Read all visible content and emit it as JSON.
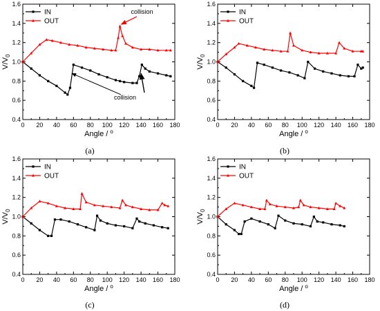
{
  "chart_data": [
    {
      "panel_label": "(a)",
      "type": "line",
      "xlabel": "Angle / o",
      "ylabel": "V/V0",
      "xlim": [
        0,
        180
      ],
      "ylim": [
        0.4,
        1.6
      ],
      "xticks": [
        "0",
        "20",
        "40",
        "60",
        "80",
        "100",
        "120",
        "140",
        "160",
        "180"
      ],
      "yticks": [
        "0.4",
        "0.6",
        "0.8",
        "1.0",
        "1.2",
        "1.4",
        "1.6"
      ],
      "legend_position": "top-left",
      "series": [
        {
          "name": "IN",
          "color": "#000000",
          "marker": "square",
          "x": [
            0,
            10,
            20,
            30,
            40,
            50,
            53,
            56,
            60,
            70,
            80,
            90,
            100,
            110,
            115,
            120,
            130,
            135,
            138,
            141,
            145,
            150,
            160,
            170,
            175
          ],
          "y": [
            1.0,
            0.93,
            0.86,
            0.8,
            0.75,
            0.68,
            0.66,
            0.73,
            0.97,
            0.94,
            0.91,
            0.87,
            0.84,
            0.81,
            0.8,
            0.79,
            0.78,
            0.78,
            0.85,
            0.97,
            0.93,
            0.9,
            0.88,
            0.86,
            0.85
          ]
        },
        {
          "name": "OUT",
          "color": "#ff0000",
          "marker": "triangle",
          "x": [
            0,
            10,
            20,
            28,
            35,
            45,
            55,
            65,
            75,
            85,
            95,
            105,
            110,
            113,
            115,
            118,
            122,
            130,
            140,
            150,
            160,
            170,
            175
          ],
          "y": [
            1.0,
            1.09,
            1.18,
            1.23,
            1.22,
            1.2,
            1.18,
            1.17,
            1.15,
            1.14,
            1.13,
            1.12,
            1.12,
            1.25,
            1.37,
            1.27,
            1.19,
            1.15,
            1.13,
            1.13,
            1.12,
            1.12,
            1.12
          ]
        }
      ],
      "annotations": [
        "collision",
        "collision"
      ]
    },
    {
      "panel_label": "(b)",
      "type": "line",
      "xlabel": "Angle / o",
      "ylabel": "V/V0",
      "xlim": [
        0,
        180
      ],
      "ylim": [
        0.4,
        1.6
      ],
      "xticks": [
        "0",
        "20",
        "40",
        "60",
        "80",
        "100",
        "120",
        "140",
        "160",
        "180"
      ],
      "yticks": [
        "0.4",
        "0.6",
        "0.8",
        "1.0",
        "1.2",
        "1.4",
        "1.6"
      ],
      "legend_position": "top-left",
      "series": [
        {
          "name": "IN",
          "color": "#000000",
          "marker": "square",
          "x": [
            0,
            10,
            20,
            30,
            40,
            43,
            47,
            55,
            65,
            75,
            85,
            95,
            103,
            107,
            115,
            125,
            135,
            145,
            155,
            162,
            166,
            170,
            172
          ],
          "y": [
            1.0,
            0.94,
            0.87,
            0.8,
            0.75,
            0.73,
            0.99,
            0.97,
            0.94,
            0.91,
            0.89,
            0.86,
            0.83,
            1.0,
            0.93,
            0.9,
            0.88,
            0.86,
            0.85,
            0.85,
            0.97,
            0.93,
            0.94
          ]
        },
        {
          "name": "OUT",
          "color": "#ff0000",
          "marker": "triangle",
          "x": [
            0,
            10,
            20,
            25,
            35,
            45,
            55,
            65,
            75,
            83,
            86,
            90,
            100,
            110,
            120,
            130,
            140,
            144,
            150,
            160,
            170,
            172
          ],
          "y": [
            1.0,
            1.08,
            1.15,
            1.19,
            1.17,
            1.15,
            1.13,
            1.12,
            1.11,
            1.11,
            1.3,
            1.17,
            1.12,
            1.1,
            1.09,
            1.09,
            1.09,
            1.2,
            1.14,
            1.11,
            1.11,
            1.11
          ]
        }
      ]
    },
    {
      "panel_label": "(c)",
      "type": "line",
      "xlabel": "Angle / o",
      "ylabel": "V/V0",
      "xlim": [
        0,
        180
      ],
      "ylim": [
        0.4,
        1.6
      ],
      "xticks": [
        "0",
        "20",
        "40",
        "60",
        "80",
        "100",
        "120",
        "140",
        "160",
        "180"
      ],
      "yticks": [
        "0.4",
        "0.6",
        "0.8",
        "1.0",
        "1.2",
        "1.4",
        "1.6"
      ],
      "legend_position": "top-left",
      "series": [
        {
          "name": "IN",
          "color": "#000000",
          "marker": "square",
          "x": [
            0,
            10,
            20,
            30,
            34,
            38,
            45,
            55,
            65,
            75,
            85,
            88,
            92,
            100,
            110,
            120,
            130,
            135,
            138,
            145,
            155,
            165,
            172
          ],
          "y": [
            1.0,
            0.93,
            0.86,
            0.8,
            0.8,
            0.97,
            0.97,
            0.95,
            0.92,
            0.89,
            0.86,
            1.01,
            0.96,
            0.93,
            0.91,
            0.9,
            0.88,
            0.98,
            0.95,
            0.93,
            0.91,
            0.89,
            0.88
          ]
        },
        {
          "name": "OUT",
          "color": "#ff0000",
          "marker": "triangle",
          "x": [
            0,
            10,
            20,
            30,
            40,
            50,
            60,
            68,
            70,
            75,
            85,
            95,
            105,
            115,
            118,
            122,
            130,
            140,
            150,
            160,
            165,
            168,
            172
          ],
          "y": [
            1.0,
            1.09,
            1.16,
            1.14,
            1.11,
            1.09,
            1.08,
            1.08,
            1.24,
            1.15,
            1.12,
            1.11,
            1.1,
            1.09,
            1.17,
            1.12,
            1.1,
            1.08,
            1.07,
            1.07,
            1.14,
            1.12,
            1.11
          ]
        }
      ]
    },
    {
      "panel_label": "(d)",
      "type": "line",
      "xlabel": "Angle / o",
      "ylabel": "V/V0",
      "xlim": [
        0,
        180
      ],
      "ylim": [
        0.4,
        1.6
      ],
      "xticks": [
        "0",
        "20",
        "40",
        "60",
        "80",
        "100",
        "120",
        "140",
        "160",
        "180"
      ],
      "yticks": [
        "0.4",
        "0.6",
        "0.8",
        "1.0",
        "1.2",
        "1.4",
        "1.6"
      ],
      "legend_position": "top-left",
      "series": [
        {
          "name": "IN",
          "color": "#000000",
          "marker": "square",
          "x": [
            0,
            10,
            20,
            25,
            28,
            32,
            40,
            50,
            60,
            68,
            72,
            80,
            90,
            100,
            110,
            114,
            118,
            125,
            135,
            145,
            150
          ],
          "y": [
            1.0,
            0.92,
            0.86,
            0.82,
            0.82,
            0.95,
            0.98,
            0.95,
            0.92,
            0.88,
            1.01,
            0.96,
            0.93,
            0.92,
            0.9,
            1.0,
            0.95,
            0.94,
            0.92,
            0.91,
            0.9
          ]
        },
        {
          "name": "OUT",
          "color": "#ff0000",
          "marker": "triangle",
          "x": [
            0,
            10,
            20,
            30,
            40,
            50,
            56,
            58,
            62,
            70,
            80,
            90,
            96,
            98,
            102,
            110,
            120,
            130,
            138,
            140,
            145,
            150
          ],
          "y": [
            1.0,
            1.08,
            1.14,
            1.12,
            1.1,
            1.08,
            1.08,
            1.17,
            1.13,
            1.11,
            1.1,
            1.09,
            1.1,
            1.17,
            1.12,
            1.1,
            1.09,
            1.08,
            1.08,
            1.14,
            1.11,
            1.09
          ]
        }
      ]
    }
  ]
}
